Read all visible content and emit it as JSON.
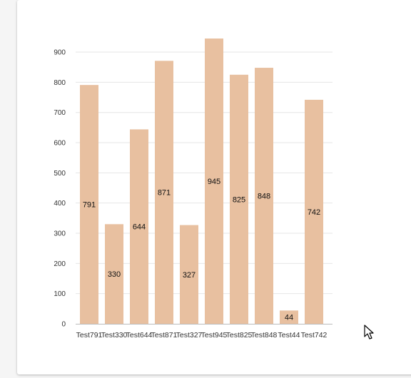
{
  "colors": {
    "bar": "#e8c0a0",
    "grid": "#e6e6e6",
    "axis": "#bbbbbb"
  },
  "cursor": {
    "icon": "mouse-pointer-icon"
  },
  "chart_data": {
    "type": "bar",
    "categories": [
      "Test791",
      "Test330",
      "Test644",
      "Test871",
      "Test327",
      "Test945",
      "Test825",
      "Test848",
      "Test44",
      "Test742"
    ],
    "values": [
      791,
      330,
      644,
      871,
      327,
      945,
      825,
      848,
      44,
      742
    ],
    "yticks": [
      0,
      100,
      200,
      300,
      400,
      500,
      600,
      700,
      800,
      900
    ],
    "ylim": [
      0,
      1000
    ],
    "grid": true,
    "legend": false,
    "data_labels": true
  }
}
